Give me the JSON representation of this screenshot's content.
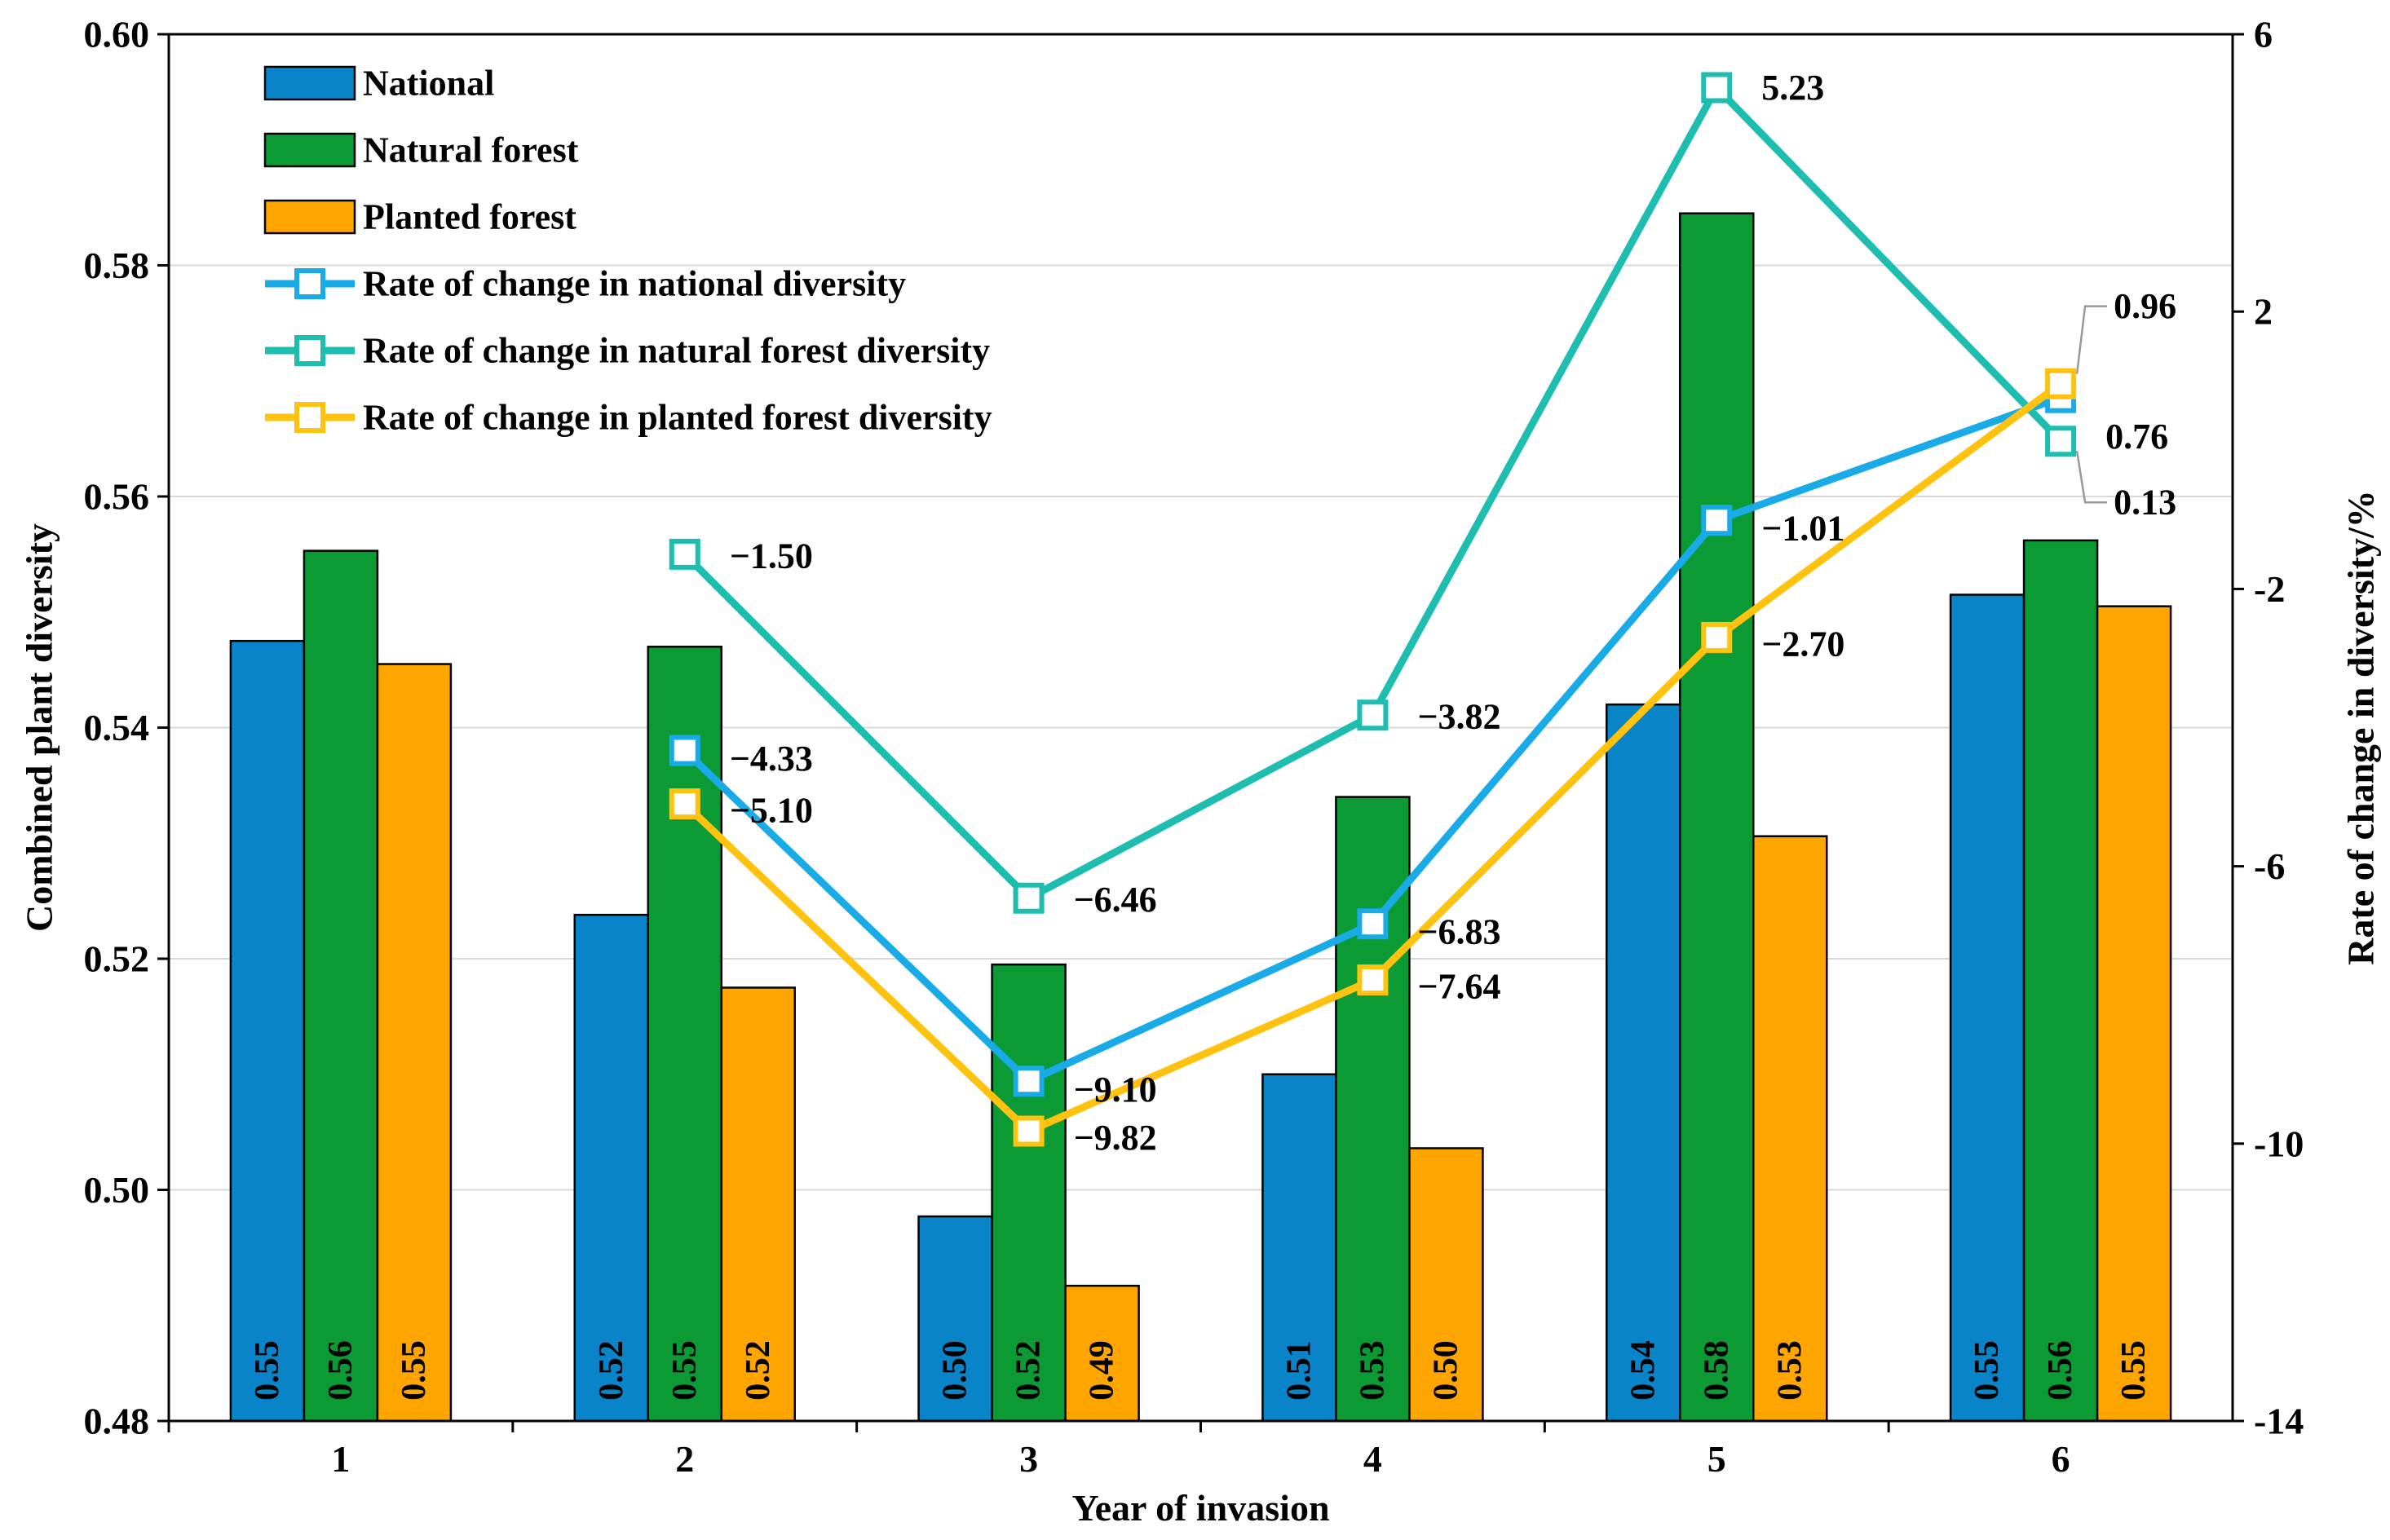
{
  "chart_data": {
    "type": "bar",
    "categories": [
      "1",
      "2",
      "3",
      "4",
      "5",
      "6"
    ],
    "xlabel": "Year of invasion",
    "ylabel": "Combined plant diversity",
    "y2label": "Rate of change in diversity/%",
    "ylim": [
      0.48,
      0.6
    ],
    "y2lim": [
      -14,
      6
    ],
    "yticks": [
      "0.48",
      "0.50",
      "0.52",
      "0.54",
      "0.56",
      "0.58",
      "0.60"
    ],
    "y2ticks": [
      "-14",
      "-10",
      "-6",
      "-2",
      "2",
      "6"
    ],
    "grid": true,
    "legend_placement": "top-left",
    "bar_series": [
      {
        "name": "National",
        "color": "#0A84C8",
        "values": [
          0.5475,
          0.5238,
          0.4977,
          0.51,
          0.542,
          0.5515
        ],
        "labels": [
          "0.55",
          "0.52",
          "0.50",
          "0.51",
          "0.54",
          "0.55"
        ]
      },
      {
        "name": "Natural forest",
        "color": "#0B9A34",
        "values": [
          0.5553,
          0.547,
          0.5195,
          0.534,
          0.5845,
          0.5562
        ],
        "labels": [
          "0.56",
          "0.55",
          "0.52",
          "0.53",
          "0.58",
          "0.56"
        ]
      },
      {
        "name": "Planted forest",
        "color": "#FFA500",
        "values": [
          0.5455,
          0.5175,
          0.4917,
          0.5036,
          0.5306,
          0.5505
        ],
        "labels": [
          "0.55",
          "0.52",
          "0.49",
          "0.50",
          "0.53",
          "0.55"
        ]
      }
    ],
    "line_series": [
      {
        "name": "Rate of change in national diversity",
        "color": "#18ABE8",
        "x": [
          2,
          3,
          4,
          5,
          6
        ],
        "values": [
          -4.33,
          -9.1,
          -6.83,
          -1.01,
          0.76
        ],
        "labels": [
          "−4.33",
          "−9.10",
          "−6.83",
          "−1.01",
          "0.76"
        ]
      },
      {
        "name": "Rate of change in natural forest diversity",
        "color": "#1DBDB0",
        "x": [
          2,
          3,
          4,
          5,
          6
        ],
        "values": [
          -1.5,
          -6.46,
          -3.82,
          5.23,
          0.13
        ],
        "labels": [
          "−1.50",
          "−6.46",
          "−3.82",
          "5.23",
          "0.13"
        ]
      },
      {
        "name": "Rate of change in planted forest diversity",
        "color": "#FFC20E",
        "x": [
          2,
          3,
          4,
          5,
          6
        ],
        "values": [
          -5.1,
          -9.82,
          -7.64,
          -2.7,
          0.96
        ],
        "labels": [
          "−5.10",
          "−9.82",
          "−7.64",
          "−2.70",
          "0.96"
        ]
      }
    ]
  }
}
